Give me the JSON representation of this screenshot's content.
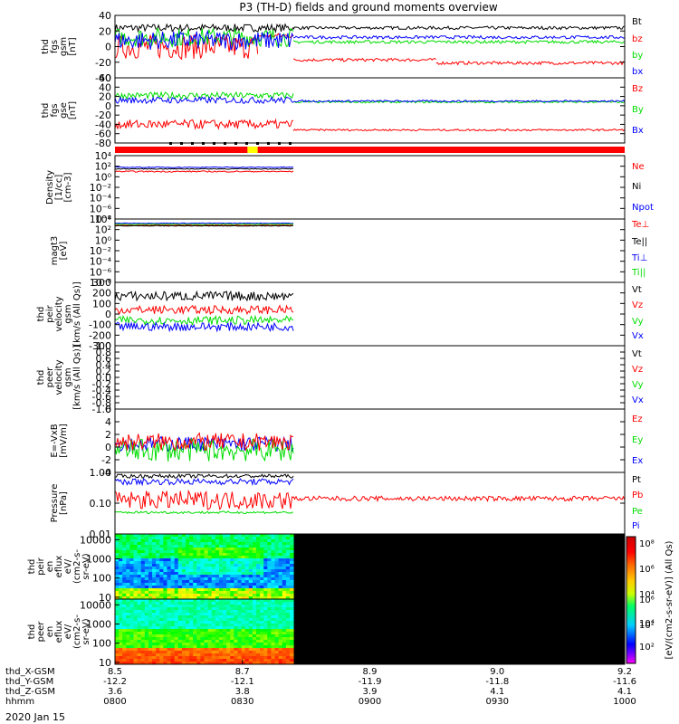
{
  "title": "P3 (TH-D) fields and ground moments overview",
  "date_label": "2020 Jan 15",
  "colors": {
    "black": "#000000",
    "red": "#ff0000",
    "green": "#00dd00",
    "blue": "#0000ff",
    "yellow": "#ffff00"
  },
  "chart_data": [
    {
      "type": "line",
      "id": "fgs-gsm",
      "ylabel": [
        "thd",
        "fgs",
        "gsm",
        "[nT]"
      ],
      "yscale": "linear",
      "ylim": [
        -40,
        40
      ],
      "yticks": [
        "40",
        "20",
        "0",
        "-20",
        "-40"
      ],
      "ytick_values": [
        40,
        20,
        0,
        -20,
        -40
      ],
      "legend": [
        {
          "label": "Bt",
          "color": "black"
        },
        {
          "label": "bz",
          "color": "red"
        },
        {
          "label": "by",
          "color": "green"
        },
        {
          "label": "bx",
          "color": "blue"
        }
      ],
      "series": [
        {
          "name": "Bt",
          "color": "black",
          "segments": [
            {
              "t0": 0,
              "t1": 0.35,
              "y": 24,
              "noise": 5
            },
            {
              "t0": 0.35,
              "t1": 1,
              "y": 24,
              "noise": 2
            }
          ]
        },
        {
          "name": "bz",
          "color": "red",
          "segments": [
            {
              "t0": 0,
              "t1": 0.28,
              "y": 0,
              "noise": 16
            },
            {
              "t0": 0.28,
              "t1": 0.35,
              "y": 14,
              "noise": 3
            },
            {
              "t0": 0.35,
              "t1": 0.63,
              "y": -17,
              "noise": 2
            },
            {
              "t0": 0.63,
              "t1": 1,
              "y": -21,
              "noise": 2
            }
          ]
        },
        {
          "name": "by",
          "color": "green",
          "segments": [
            {
              "t0": 0,
              "t1": 0.35,
              "y": 12,
              "noise": 12
            },
            {
              "t0": 0.35,
              "t1": 1,
              "y": 6,
              "noise": 2
            }
          ]
        },
        {
          "name": "bx",
          "color": "blue",
          "segments": [
            {
              "t0": 0,
              "t1": 0.35,
              "y": 8,
              "noise": 12
            },
            {
              "t0": 0.35,
              "t1": 1,
              "y": 12,
              "noise": 2
            }
          ]
        }
      ]
    },
    {
      "type": "line",
      "id": "fgs-gse",
      "ylabel": [
        "thd",
        "fgs",
        "gse",
        "[nT]"
      ],
      "yscale": "linear",
      "ylim": [
        -80,
        60
      ],
      "yticks": [
        "60",
        "40",
        "20",
        "0",
        "-20",
        "-40",
        "-60",
        "-80"
      ],
      "ytick_values": [
        60,
        40,
        20,
        0,
        -20,
        -40,
        -60,
        -80
      ],
      "legend": [
        {
          "label": "Bz",
          "color": "red"
        },
        {
          "label": "By",
          "color": "green"
        },
        {
          "label": "Bx",
          "color": "blue"
        }
      ],
      "series": [
        {
          "name": "By",
          "color": "green",
          "segments": [
            {
              "t0": 0,
              "t1": 0.35,
              "y": 22,
              "noise": 7
            },
            {
              "t0": 0.35,
              "t1": 1,
              "y": 8,
              "noise": 2
            }
          ]
        },
        {
          "name": "Bx",
          "color": "blue",
          "segments": [
            {
              "t0": 0,
              "t1": 0.35,
              "y": 12,
              "noise": 7
            },
            {
              "t0": 0.35,
              "t1": 1,
              "y": 10,
              "noise": 2
            }
          ]
        },
        {
          "name": "Bz",
          "color": "red",
          "segments": [
            {
              "t0": 0,
              "t1": 0.35,
              "y": -40,
              "noise": 10
            },
            {
              "t0": 0.35,
              "t1": 1,
              "y": -52,
              "noise": 2
            }
          ]
        }
      ]
    },
    {
      "type": "line",
      "id": "density",
      "log": true,
      "ylabel": [
        "Density",
        "[1/cc]",
        "[cm-3]"
      ],
      "yscale": "log",
      "ylim": [
        -8,
        4
      ],
      "yticks": [
        "10⁴",
        "10²",
        "10⁰",
        "10⁻²",
        "10⁻⁴",
        "10⁻⁶",
        "10⁻⁸"
      ],
      "ytick_values": [
        4,
        2,
        0,
        -2,
        -4,
        -6,
        -8
      ],
      "legend": [
        {
          "label": "Ne",
          "color": "red"
        },
        {
          "label": "Ni",
          "color": "black"
        },
        {
          "label": "Npot",
          "color": "blue"
        }
      ],
      "series": [
        {
          "name": "Ne",
          "color": "red",
          "segments": [
            {
              "t0": 0,
              "t1": 0.35,
              "y": 1.0,
              "noise": 0.12
            }
          ]
        },
        {
          "name": "Ni",
          "color": "black",
          "segments": [
            {
              "t0": 0,
              "t1": 0.35,
              "y": 1.5,
              "noise": 0.08
            }
          ]
        },
        {
          "name": "Npot",
          "color": "blue",
          "segments": [
            {
              "t0": 0,
              "t1": 0.35,
              "y": 1.8,
              "noise": 0.08
            }
          ]
        }
      ]
    },
    {
      "type": "line",
      "id": "temperature",
      "log": true,
      "ylabel": [
        "magt3",
        "[eV]"
      ],
      "yscale": "log",
      "ylim": [
        -8,
        4
      ],
      "yticks": [
        "10⁴",
        "10²",
        "10⁰",
        "10⁻²",
        "10⁻⁴",
        "10⁻⁶",
        "10⁻⁸"
      ],
      "ytick_values": [
        4,
        2,
        0,
        -2,
        -4,
        -6,
        -8
      ],
      "legend": [
        {
          "label": "Te⊥",
          "color": "red"
        },
        {
          "label": "Te||",
          "color": "black"
        },
        {
          "label": "Ti⊥",
          "color": "blue"
        },
        {
          "label": "Ti||",
          "color": "green"
        }
      ],
      "series": [
        {
          "name": "Ti⊥",
          "color": "blue",
          "segments": [
            {
              "t0": 0,
              "t1": 0.35,
              "y": 3.2,
              "noise": 0.06
            }
          ]
        },
        {
          "name": "Ti||",
          "color": "green",
          "segments": [
            {
              "t0": 0,
              "t1": 0.35,
              "y": 3.0,
              "noise": 0.06
            }
          ]
        },
        {
          "name": "Te⊥",
          "color": "red",
          "segments": [
            {
              "t0": 0,
              "t1": 0.35,
              "y": 2.8,
              "noise": 0.05
            }
          ]
        },
        {
          "name": "Te||",
          "color": "black",
          "segments": [
            {
              "t0": 0,
              "t1": 0.35,
              "y": 2.7,
              "noise": 0.05
            }
          ]
        }
      ]
    },
    {
      "type": "line",
      "id": "peir-velocity",
      "ylabel": [
        "thd",
        "peir",
        "velocity",
        "gsm",
        "[km/s (All Qs)]"
      ],
      "yscale": "linear",
      "ylim": [
        -300,
        300
      ],
      "yticks": [
        "300",
        "200",
        "100",
        "0",
        "-100",
        "-200",
        "-300"
      ],
      "ytick_values": [
        300,
        200,
        100,
        0,
        -100,
        -200,
        -300
      ],
      "legend": [
        {
          "label": "Vt",
          "color": "black"
        },
        {
          "label": "Vz",
          "color": "red"
        },
        {
          "label": "Vy",
          "color": "green"
        },
        {
          "label": "Vx",
          "color": "blue"
        }
      ],
      "series": [
        {
          "name": "Vt",
          "color": "black",
          "segments": [
            {
              "t0": 0,
              "t1": 0.35,
              "y": 170,
              "noise": 45
            }
          ]
        },
        {
          "name": "Vz",
          "color": "red",
          "segments": [
            {
              "t0": 0,
              "t1": 0.35,
              "y": 40,
              "noise": 40
            }
          ]
        },
        {
          "name": "Vy",
          "color": "green",
          "segments": [
            {
              "t0": 0,
              "t1": 0.35,
              "y": -60,
              "noise": 40
            }
          ]
        },
        {
          "name": "Vx",
          "color": "blue",
          "segments": [
            {
              "t0": 0,
              "t1": 0.35,
              "y": -120,
              "noise": 40
            }
          ]
        }
      ]
    },
    {
      "type": "line",
      "id": "peer-velocity",
      "ylabel": [
        "thd",
        "peer",
        "velocity",
        "gsm",
        "[km/s (All Qs)]"
      ],
      "yscale": "linear",
      "ylim": [
        -1,
        1
      ],
      "yticks": [
        "1.0",
        "0.8",
        "0.6",
        "0.4",
        "0.2",
        "0.0",
        "-0.2",
        "-0.4",
        "-0.6",
        "-0.8",
        "-1.0"
      ],
      "ytick_values": [
        1,
        0.8,
        0.6,
        0.4,
        0.2,
        0,
        -0.2,
        -0.4,
        -0.6,
        -0.8,
        -1
      ],
      "legend": [
        {
          "label": "Vt",
          "color": "black"
        },
        {
          "label": "Vz",
          "color": "red"
        },
        {
          "label": "Vy",
          "color": "green"
        },
        {
          "label": "Vx",
          "color": "blue"
        }
      ],
      "series": []
    },
    {
      "type": "line",
      "id": "efield",
      "ylabel": [
        "E=-VxB",
        "[mV/m]"
      ],
      "yscale": "linear",
      "ylim": [
        -4,
        6
      ],
      "yticks": [
        "6",
        "4",
        "2",
        "0",
        "-2",
        "-4"
      ],
      "ytick_values": [
        6,
        4,
        2,
        0,
        -2,
        -4
      ],
      "legend": [
        {
          "label": "Ez",
          "color": "red"
        },
        {
          "label": "Ey",
          "color": "green"
        },
        {
          "label": "Ex",
          "color": "blue"
        }
      ],
      "series": [
        {
          "name": "Ex",
          "color": "blue",
          "segments": [
            {
              "t0": 0,
              "t1": 0.35,
              "y": 0.5,
              "noise": 1.2
            }
          ]
        },
        {
          "name": "Ey",
          "color": "green",
          "segments": [
            {
              "t0": 0,
              "t1": 0.35,
              "y": -0.5,
              "noise": 1.8
            }
          ]
        },
        {
          "name": "Ez",
          "color": "red",
          "segments": [
            {
              "t0": 0,
              "t1": 0.35,
              "y": 0.8,
              "noise": 1.4
            }
          ]
        }
      ]
    },
    {
      "type": "line",
      "id": "pressure",
      "log": true,
      "ylabel": [
        "Pressure",
        "[nPa]"
      ],
      "yscale": "log",
      "ylim": [
        -2,
        0
      ],
      "yticks": [
        "1.00",
        "0.10",
        "0.01"
      ],
      "ytick_values": [
        0,
        -1,
        -2
      ],
      "legend": [
        {
          "label": "Pt",
          "color": "black"
        },
        {
          "label": "Pb",
          "color": "red"
        },
        {
          "label": "Pe",
          "color": "green"
        },
        {
          "label": "Pi",
          "color": "blue"
        }
      ],
      "series": [
        {
          "name": "Pt",
          "color": "black",
          "segments": [
            {
              "t0": 0,
              "t1": 0.35,
              "y": -0.12,
              "noise": 0.06
            }
          ]
        },
        {
          "name": "Pi",
          "color": "blue",
          "segments": [
            {
              "t0": 0,
              "t1": 0.35,
              "y": -0.3,
              "noise": 0.1
            }
          ]
        },
        {
          "name": "Pe",
          "color": "green",
          "segments": [
            {
              "t0": 0,
              "t1": 0.35,
              "y": -1.3,
              "noise": 0.04
            }
          ]
        },
        {
          "name": "Pb",
          "color": "red",
          "segments": [
            {
              "t0": 0,
              "t1": 0.35,
              "y": -0.9,
              "noise": 0.3
            },
            {
              "t0": 0.35,
              "t1": 1,
              "y": -0.85,
              "noise": 0.08
            }
          ]
        }
      ]
    },
    {
      "type": "heatmap",
      "id": "peir-eflux",
      "ylabel": [
        "thd",
        "peir",
        "en",
        "eflux",
        "eV/",
        "(cm2-s-",
        "sr-eV)"
      ],
      "yscale": "log",
      "ylim": [
        0.9,
        4.3
      ],
      "yticks": [
        "10000",
        "1000",
        "100",
        "10"
      ],
      "ytick_values": [
        4,
        3,
        2,
        1
      ],
      "data_extent_t": [
        0,
        0.35
      ]
    },
    {
      "type": "heatmap",
      "id": "peer-eflux",
      "ylabel": [
        "thd",
        "peer",
        "en",
        "eflux",
        "eV/",
        "(cm2-s-",
        "sr-eV)"
      ],
      "yscale": "log",
      "ylim": [
        0.9,
        4.3
      ],
      "yticks": [
        "10000",
        "1000",
        "100",
        "10"
      ],
      "ytick_values": [
        4,
        3,
        2,
        1
      ],
      "data_extent_t": [
        0,
        0.35
      ]
    }
  ],
  "colorbar": {
    "tick_labels": [
      "10⁸",
      "10⁶",
      "10⁴",
      "10²"
    ],
    "label": "[eV/(cm2-s-sr-eV)] (All Qs)"
  },
  "time_axis": {
    "row_labels": [
      "thd_X-GSM",
      "thd_Y-GSM",
      "thd_Z-GSM",
      "hhmm"
    ],
    "columns": [
      {
        "x": "8.5",
        "y": "-12.2",
        "z": "3.6",
        "hhmm": "0800"
      },
      {
        "x": "8.7",
        "y": "-12.1",
        "z": "3.8",
        "hhmm": "0830"
      },
      {
        "x": "8.9",
        "y": "-11.9",
        "z": "3.9",
        "hhmm": "0900"
      },
      {
        "x": "9.0",
        "y": "-11.8",
        "z": "4.1",
        "hhmm": "0930"
      },
      {
        "x": "9.2",
        "y": "-11.6",
        "z": "4.1",
        "hhmm": "1000"
      }
    ]
  },
  "mode_bar": {
    "segments": [
      {
        "t0": 0,
        "t1": 0.26,
        "color": "red"
      },
      {
        "t0": 0.26,
        "t1": 0.28,
        "color": "yellow"
      },
      {
        "t0": 0.28,
        "t1": 1,
        "color": "red"
      }
    ]
  }
}
